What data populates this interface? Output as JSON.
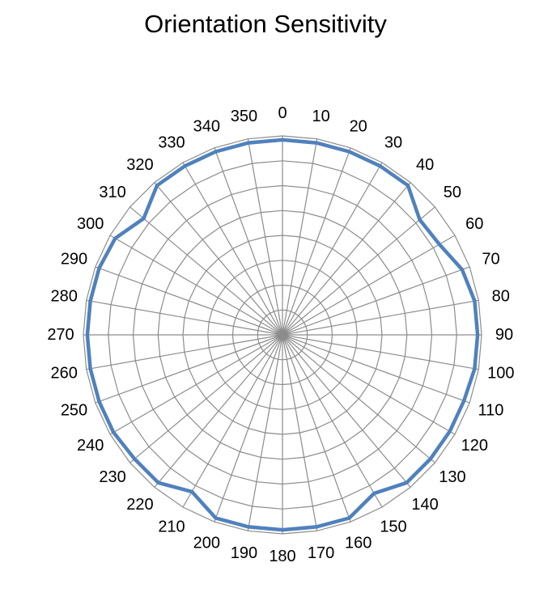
{
  "chart_data": {
    "type": "radar",
    "title": "Orientation Sensitivity",
    "angles": [
      0,
      10,
      20,
      30,
      40,
      50,
      60,
      70,
      80,
      90,
      100,
      110,
      120,
      130,
      140,
      150,
      160,
      170,
      180,
      190,
      200,
      210,
      220,
      230,
      240,
      250,
      260,
      270,
      280,
      290,
      300,
      310,
      320,
      330,
      340,
      350
    ],
    "angle_labels": [
      "0",
      "10",
      "20",
      "30",
      "40",
      "50",
      "60",
      "70",
      "80",
      "90",
      "100",
      "110",
      "120",
      "130",
      "140",
      "150",
      "160",
      "170",
      "180",
      "190",
      "200",
      "210",
      "220",
      "230",
      "240",
      "250",
      "260",
      "270",
      "280",
      "290",
      "300",
      "310",
      "320",
      "330",
      "340",
      "350"
    ],
    "series": [
      {
        "values": [
          98,
          98,
          98,
          98,
          98,
          90,
          91,
          96,
          98,
          98,
          98,
          97,
          97,
          97,
          97,
          92,
          98,
          98,
          98,
          98,
          98,
          91,
          97,
          97,
          98,
          98,
          98,
          98,
          98,
          98,
          97,
          91,
          98,
          98,
          98,
          98
        ],
        "color": "#4f81bd"
      }
    ],
    "rlim": [
      0,
      100
    ],
    "rings": 8,
    "grid": true,
    "legend": "none",
    "colors": {
      "grid": "#8c8c8c",
      "series": "#4f81bd",
      "text": "#000000"
    }
  }
}
